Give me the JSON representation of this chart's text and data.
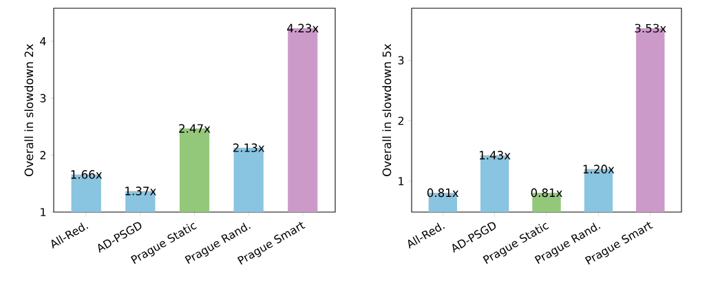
{
  "chart_data": [
    {
      "type": "bar",
      "categories": [
        "All-Red.",
        "AD-PSGD",
        "Prague Static",
        "Prague Rand.",
        "Prague Smart"
      ],
      "values": [
        1.66,
        1.37,
        2.47,
        2.13,
        4.23
      ],
      "value_labels": [
        "1.66x",
        "1.37x",
        "2.47x",
        "2.13x",
        "4.23x"
      ],
      "colors": [
        "#89c4e1",
        "#89c4e1",
        "#93c87a",
        "#89c4e1",
        "#cc9ac8"
      ],
      "ylabel": "Overall in slowdown 2x",
      "ylim": [
        1,
        4.58
      ],
      "yticks": [
        1,
        2,
        3,
        4
      ]
    },
    {
      "type": "bar",
      "categories": [
        "All-Red.",
        "AD-PSGD",
        "Prague Static",
        "Prague Rand.",
        "Prague Smart"
      ],
      "values": [
        0.81,
        1.43,
        0.81,
        1.2,
        3.53
      ],
      "value_labels": [
        "0.81x",
        "1.43x",
        "0.81x",
        "1.20x",
        "3.53x"
      ],
      "colors": [
        "#89c4e1",
        "#89c4e1",
        "#93c87a",
        "#89c4e1",
        "#cc9ac8"
      ],
      "ylabel": "Overall in slowdown 5x",
      "ylim": [
        0.49,
        3.86
      ],
      "yticks": [
        1,
        2,
        3
      ]
    }
  ]
}
